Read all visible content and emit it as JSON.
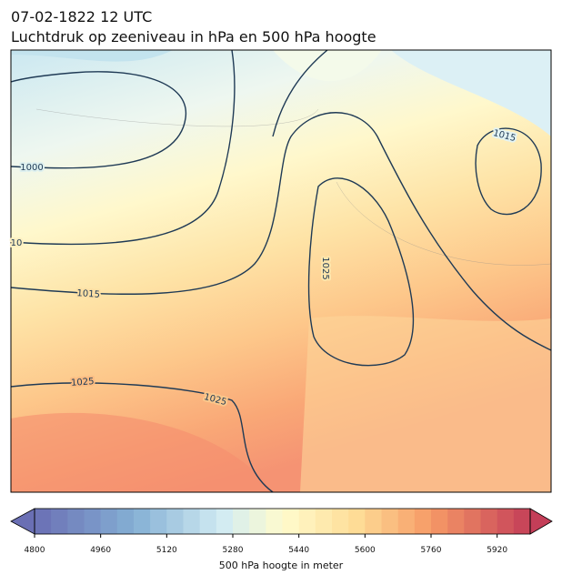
{
  "header": {
    "title": "07-02-1822 12 UTC",
    "subtitle": "Luchtdruk op zeeniveau in hPa en 500 hPa hoogte"
  },
  "map": {
    "contour_labels": [
      "1000",
      "10",
      "1015",
      "1025",
      "1025",
      "1025",
      "1015"
    ]
  },
  "colorbar": {
    "label": "500 hPa hoogte in meter",
    "lim": [
      4800,
      6000
    ],
    "step": 40,
    "ticks": [
      4800,
      4960,
      5120,
      5280,
      5440,
      5600,
      5760,
      5920
    ]
  }
}
